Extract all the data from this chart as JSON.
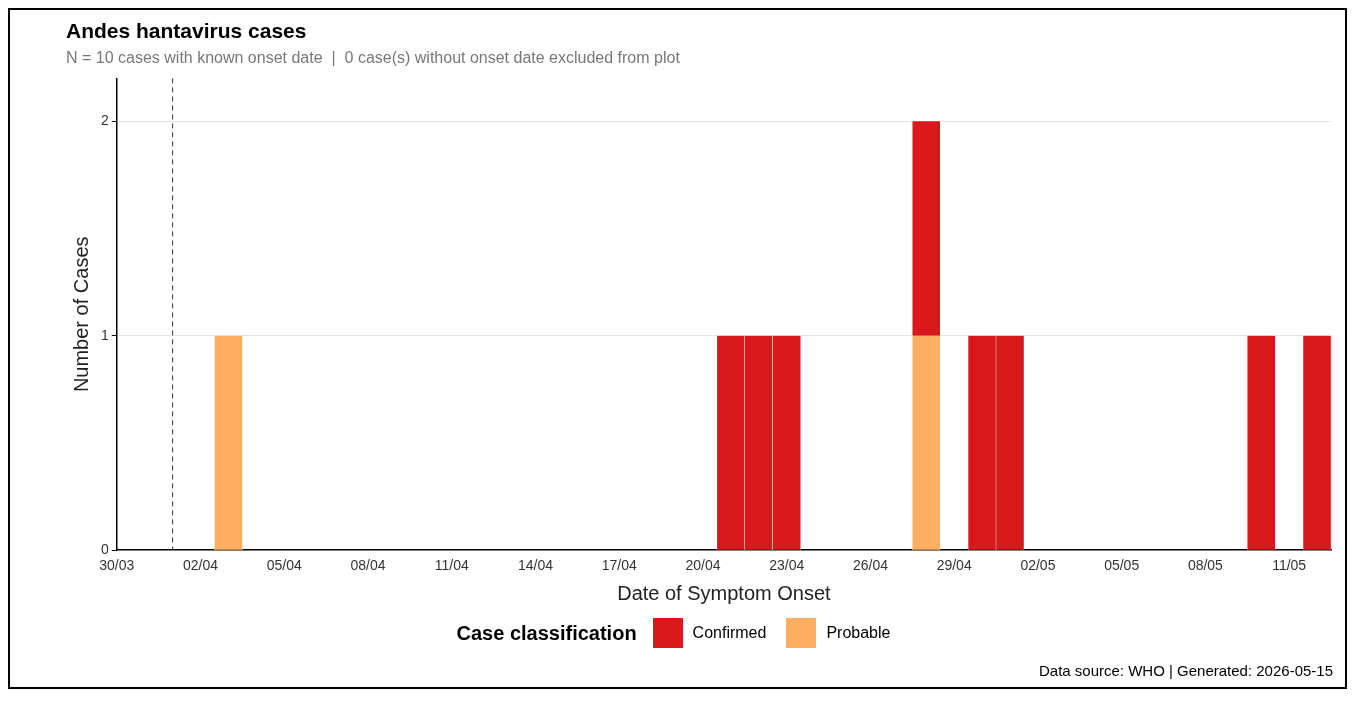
{
  "chart_data": {
    "type": "bar",
    "title": "Andes hantavirus cases",
    "subtitle": "N = 10 cases with known onset date  |  0 case(s) without onset date excluded from plot",
    "xlabel": "Date of Symptom Onset",
    "ylabel": "Number of Cases",
    "legend_title": "Case classification",
    "annotations": [
      "Data source: WHO  |  Generated: 2026-05-15"
    ],
    "x": [
      "--04-03",
      "--04-21",
      "--04-22",
      "--04-23",
      "--04-28",
      "--04-30",
      "--05-01",
      "--05-10",
      "--05-12"
    ],
    "series": [
      {
        "name": "Probable",
        "color": "#fdae61",
        "values": [
          1,
          null,
          null,
          null,
          1,
          null,
          null,
          null,
          null
        ]
      },
      {
        "name": "Confirmed",
        "color": "#d7191c",
        "values": [
          null,
          1,
          1,
          1,
          1,
          1,
          1,
          1,
          1
        ]
      }
    ],
    "stacked": true,
    "xlim": [
      "--03-30",
      "--05-12T12:00"
    ],
    "xticks": [
      {
        "value": "--03-30",
        "label": "30/03"
      },
      {
        "value": "--04-02",
        "label": "02/04"
      },
      {
        "value": "--04-05",
        "label": "05/04"
      },
      {
        "value": "--04-08",
        "label": "08/04"
      },
      {
        "value": "--04-11",
        "label": "11/04"
      },
      {
        "value": "--04-14",
        "label": "14/04"
      },
      {
        "value": "--04-17",
        "label": "17/04"
      },
      {
        "value": "--04-20",
        "label": "20/04"
      },
      {
        "value": "--04-23",
        "label": "23/04"
      },
      {
        "value": "--04-26",
        "label": "26/04"
      },
      {
        "value": "--04-29",
        "label": "29/04"
      },
      {
        "value": "--05-02",
        "label": "02/05"
      },
      {
        "value": "--05-05",
        "label": "05/05"
      },
      {
        "value": "--05-08",
        "label": "08/05"
      },
      {
        "value": "--05-11",
        "label": "11/05"
      }
    ],
    "ylim": [
      0,
      2.2
    ],
    "yticks": [
      0,
      1,
      2
    ],
    "ref_lines": [
      {
        "axis": "x",
        "value": "--04-01",
        "line_style": "dashed",
        "color": "#333333"
      }
    ],
    "grid": "y",
    "legend": "bottom"
  }
}
